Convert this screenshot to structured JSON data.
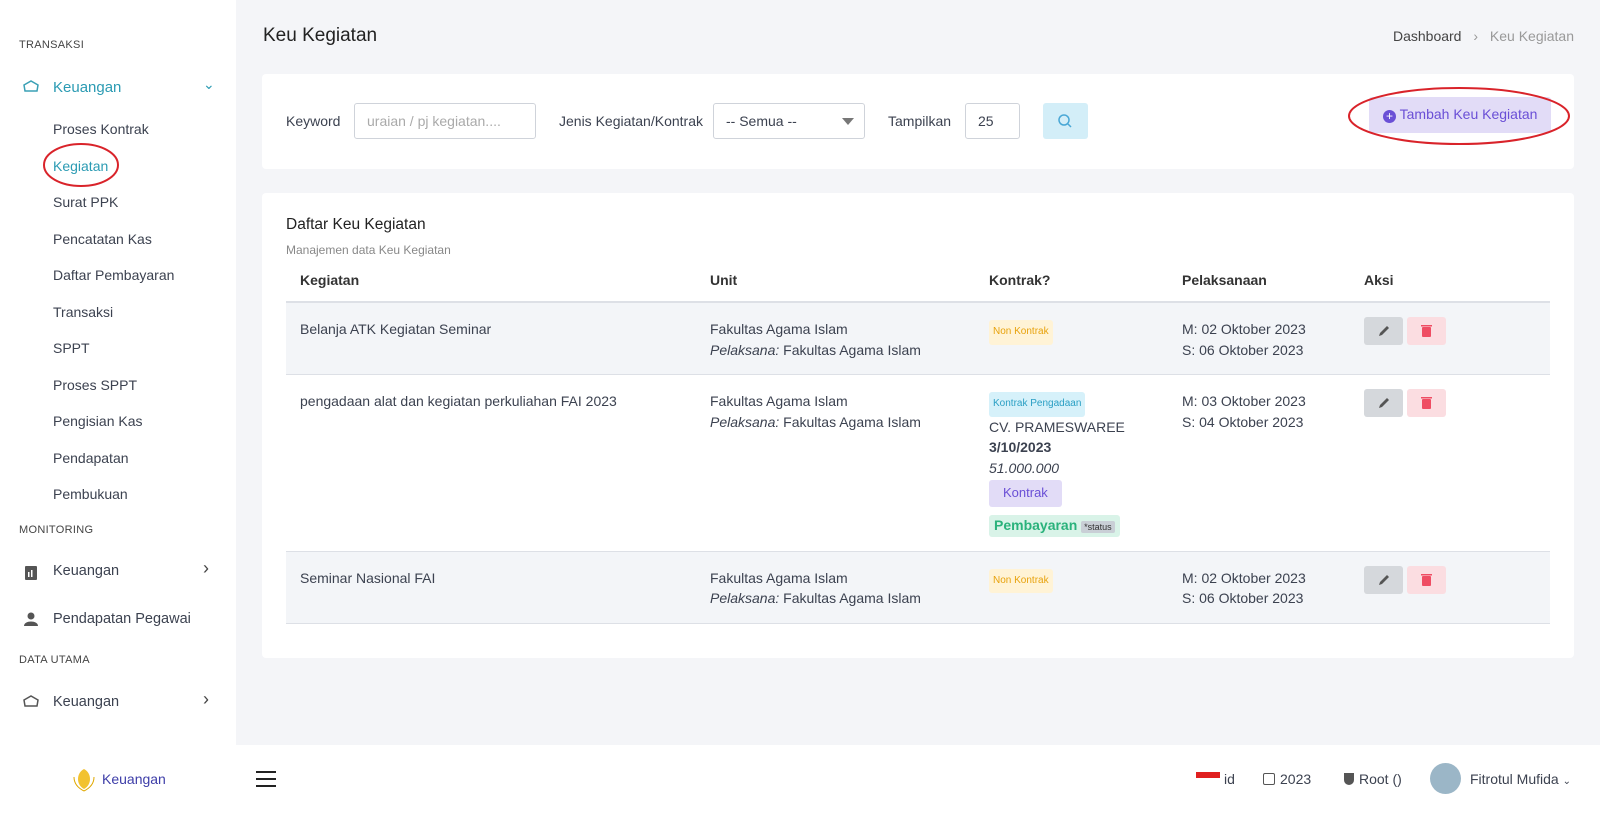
{
  "sidebar": {
    "groups": [
      {
        "label": "TRANSAKSI",
        "items": [
          {
            "text": "Keuangan",
            "children": [
              "Proses Kontrak",
              "Kegiatan",
              "Surat PPK",
              "Pencatatan Kas",
              "Daftar Pembayaran",
              "Transaksi",
              "SPPT",
              "Proses SPPT",
              "Pengisian Kas",
              "Pendapatan",
              "Pembukuan"
            ]
          }
        ]
      },
      {
        "label": "MONITORING",
        "items": [
          {
            "text": "Keuangan"
          },
          {
            "text": "Pendapatan Pegawai"
          }
        ]
      },
      {
        "label": "DATA UTAMA",
        "items": [
          {
            "text": "Keuangan"
          }
        ]
      }
    ]
  },
  "header": {
    "title": "Keu Kegiatan",
    "breadcrumb": [
      "Dashboard",
      "Keu Kegiatan"
    ]
  },
  "filter": {
    "keyword_label": "Keyword",
    "keyword_placeholder": "uraian / pj kegiatan....",
    "jenis_label": "Jenis Kegiatan/Kontrak",
    "jenis_value": "-- Semua --",
    "tampilkan_label": "Tampilkan",
    "tampilkan_value": "25",
    "add_button": "Tambah Keu Kegiatan"
  },
  "table": {
    "title": "Daftar Keu Kegiatan",
    "subtitle": "Manajemen data Keu Kegiatan",
    "columns": [
      "Kegiatan",
      "Unit",
      "Kontrak?",
      "Pelaksanaan",
      "Aksi"
    ],
    "rows": [
      {
        "kegiatan": "Belanja ATK Kegiatan Seminar",
        "unit": "Fakultas Agama Islam",
        "pelaksana_label": "Pelaksana:",
        "pelaksana": "Fakultas Agama Islam",
        "kontrak": "Non Kontrak",
        "mulai": "M: 02 Oktober 2023",
        "selesai": "S: 06 Oktober 2023"
      },
      {
        "kegiatan": "pengadaan alat dan kegiatan perkuliahan FAI 2023",
        "unit": "Fakultas Agama Islam",
        "pelaksana_label": "Pelaksana:",
        "pelaksana": "Fakultas Agama Islam",
        "kontrak": "Kontrak Pengadaan",
        "vendor": "CV. PRAMESWAREE",
        "tanggal": "3/10/2023",
        "nilai": "51.000.000",
        "kontrak_button": "Kontrak",
        "pembayaran": "Pembayaran",
        "status": "*status",
        "mulai": "M: 03 Oktober 2023",
        "selesai": "S: 04 Oktober 2023"
      },
      {
        "kegiatan": "Seminar Nasional FAI",
        "unit": "Fakultas Agama Islam",
        "pelaksana_label": "Pelaksana:",
        "pelaksana": "Fakultas Agama Islam",
        "kontrak": "Non Kontrak",
        "mulai": "M: 02 Oktober 2023",
        "selesai": "S: 06 Oktober 2023"
      }
    ]
  },
  "footer": {
    "brand": "Keuangan",
    "language": "id",
    "year": "2023",
    "role": "Root ()",
    "user": "Fitrotul Mufida"
  }
}
